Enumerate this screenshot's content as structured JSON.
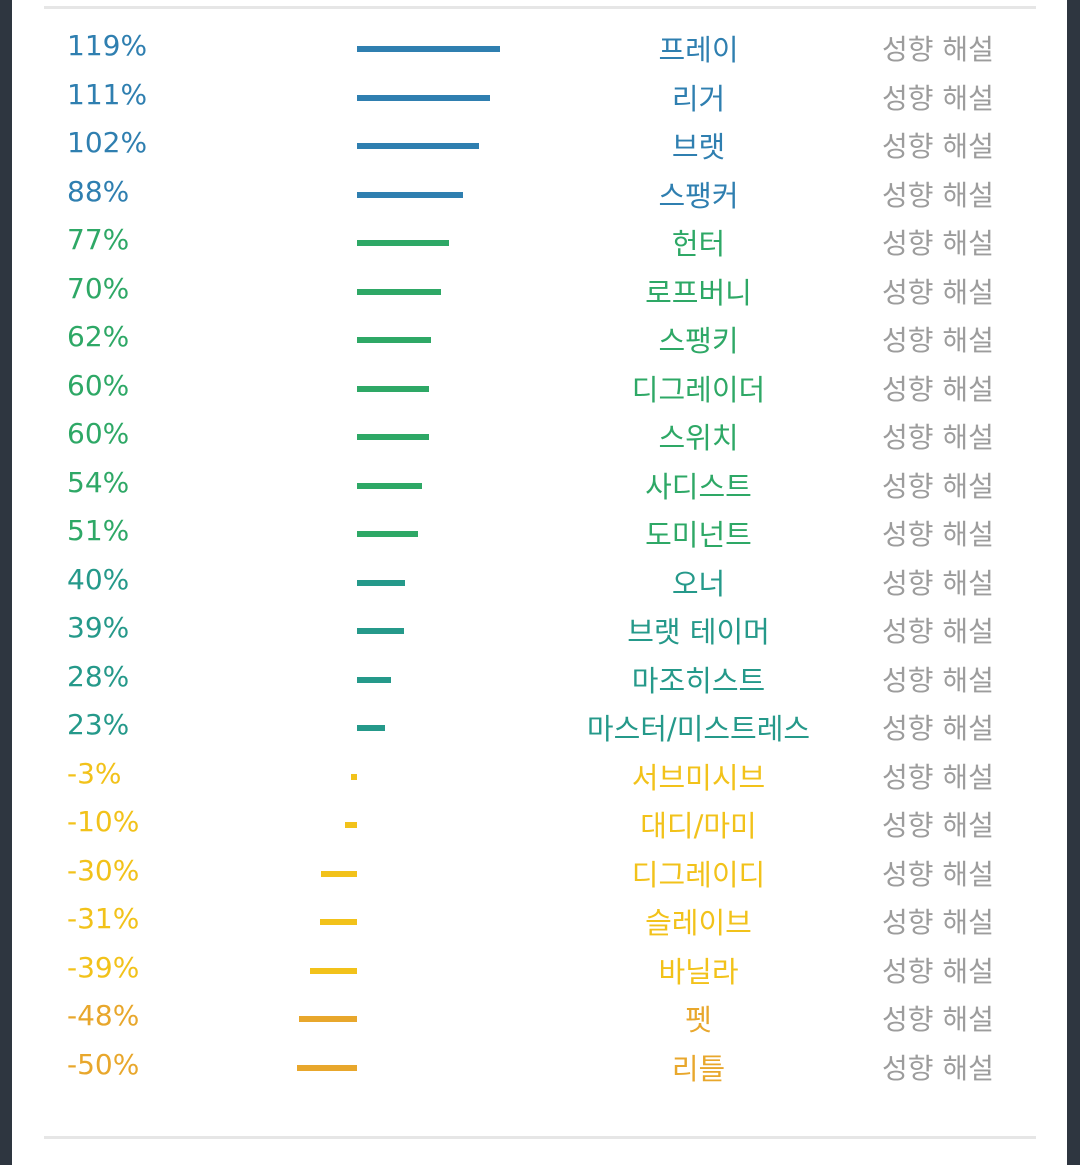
{
  "chart_data": {
    "type": "bar",
    "orientation": "horizontal-diverging",
    "unit": "%",
    "link_label": "성향 해설",
    "categories": [
      "프레이",
      "리거",
      "브랫",
      "스팽커",
      "헌터",
      "로프버니",
      "스팽키",
      "디그레이더",
      "스위치",
      "사디스트",
      "도미넌트",
      "오너",
      "브랫 테이머",
      "마조히스트",
      "마스터/미스트레스",
      "서브미시브",
      "대디/마미",
      "디그레이디",
      "슬레이브",
      "바닐라",
      "펫",
      "리틀"
    ],
    "values": [
      119,
      111,
      102,
      88,
      77,
      70,
      62,
      60,
      60,
      54,
      51,
      40,
      39,
      28,
      23,
      -3,
      -10,
      -30,
      -31,
      -39,
      -48,
      -50
    ],
    "labels": [
      "119%",
      "111%",
      "102%",
      "88%",
      "77%",
      "70%",
      "62%",
      "60%",
      "60%",
      "54%",
      "51%",
      "40%",
      "39%",
      "28%",
      "23%",
      "-3%",
      "-10%",
      "-30%",
      "-31%",
      "-39%",
      "-48%",
      "-50%"
    ],
    "colors": [
      "#2f7fb0",
      "#2f7fb0",
      "#2f7fb0",
      "#2f7fb0",
      "#2ea866",
      "#2ea866",
      "#2ea866",
      "#2ea866",
      "#2ea866",
      "#2ea866",
      "#2ea866",
      "#25998a",
      "#25998a",
      "#25998a",
      "#25998a",
      "#f2c21a",
      "#f2c21a",
      "#f2c21a",
      "#f2c21a",
      "#f2c21a",
      "#e8a72c",
      "#e8a72c"
    ]
  }
}
